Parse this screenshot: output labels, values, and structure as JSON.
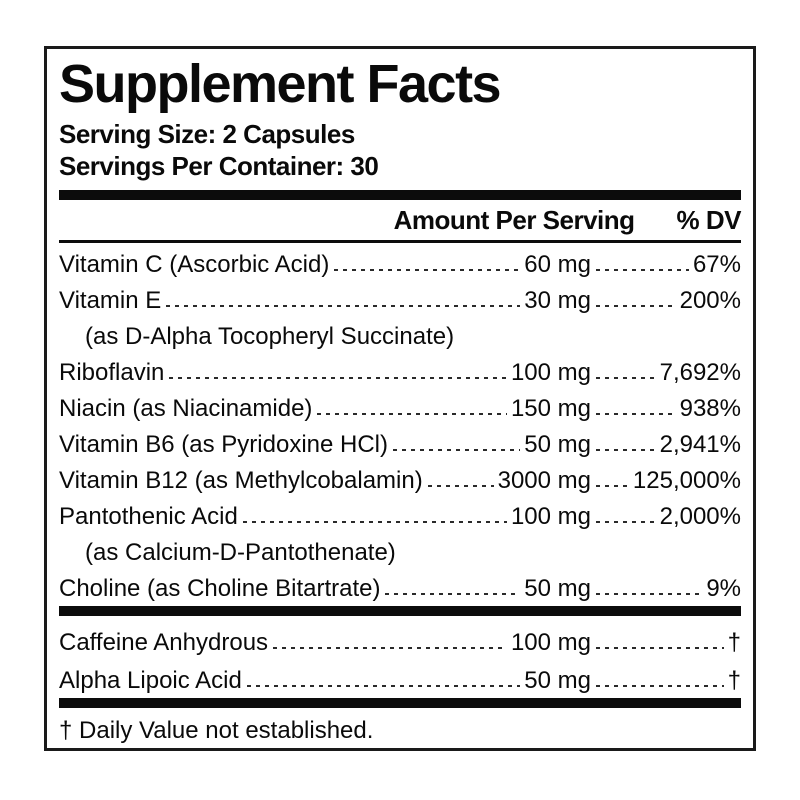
{
  "label": {
    "title": "Supplement Facts",
    "serving_size": "Serving Size: 2 Capsules",
    "servings_per_container": "Servings Per Container: 30",
    "columns": {
      "amount": "Amount Per Serving",
      "dv": "% DV"
    },
    "sections": [
      {
        "rows": [
          {
            "name": "Vitamin C (Ascorbic Acid)",
            "amount": "60 mg",
            "dv": "67%"
          },
          {
            "name": "Vitamin E",
            "amount": "30 mg",
            "dv": "200%"
          },
          {
            "name": "(as D-Alpha Tocopheryl Succinate)",
            "sub": true
          },
          {
            "name": "Riboflavin",
            "amount": "100 mg",
            "dv": "7,692%"
          },
          {
            "name": "Niacin (as Niacinamide)",
            "amount": "150 mg",
            "dv": "938%"
          },
          {
            "name": "Vitamin B6 (as Pyridoxine HCl)",
            "amount": "50 mg",
            "dv": "2,941%"
          },
          {
            "name": "Vitamin B12 (as Methylcobalamin)",
            "amount": "3000 mg",
            "dv": "125,000%"
          },
          {
            "name": "Pantothenic Acid",
            "amount": "100 mg",
            "dv": "2,000%"
          },
          {
            "name": "(as Calcium-D-Pantothenate)",
            "sub": true
          },
          {
            "name": "Choline (as Choline Bitartrate)",
            "amount": "50 mg",
            "dv": "9%"
          }
        ]
      },
      {
        "rows": [
          {
            "name": "Caffeine Anhydrous",
            "amount": "100 mg",
            "dv": "†"
          },
          {
            "name": "Alpha Lipoic Acid",
            "amount": "50 mg",
            "dv": "†"
          }
        ]
      }
    ],
    "footnote": "† Daily Value not established."
  },
  "colors": {
    "text": "#0a0a0a",
    "background": "#ffffff",
    "border": "#1a1a1a",
    "bar": "#0c0c0c"
  }
}
